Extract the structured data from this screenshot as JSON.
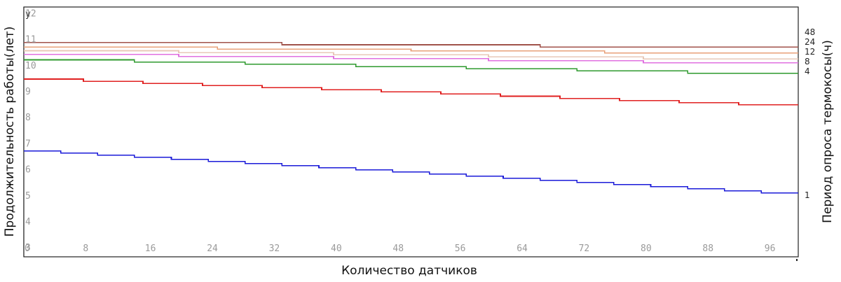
{
  "chart_data": {
    "type": "line",
    "y_axis_marker": "y",
    "xlabel": "Количество датчиков",
    "ylabel": "Продолжительность работы(лет)",
    "y2label": "Период опроса термокосы(ч)",
    "xlim": [
      0,
      100
    ],
    "ylim": [
      2.6,
      12.2
    ],
    "x_ticks": [
      "0",
      "8",
      "16",
      "24",
      "32",
      "40",
      "48",
      "56",
      "64",
      "72",
      "80",
      "88",
      "96"
    ],
    "y_ticks": [
      "3",
      "4",
      "5",
      "6",
      "7",
      "8",
      "9",
      "10",
      "11",
      "12"
    ],
    "grid": true,
    "x": [
      0,
      100
    ],
    "series": [
      {
        "name": "48",
        "color": "#a0524a",
        "values": [
          10.83,
          10.58
        ]
      },
      {
        "name": "24",
        "color": "#e8a078",
        "values": [
          10.66,
          10.36
        ]
      },
      {
        "name": "12",
        "color": "#e8c8b8",
        "values": [
          10.52,
          10.13
        ]
      },
      {
        "name": "8",
        "color": "#e070e0",
        "values": [
          10.38,
          9.97
        ]
      },
      {
        "name": "4",
        "color": "#2e9a2e",
        "values": [
          10.17,
          9.57
        ]
      },
      {
        "name": "",
        "color": "#e02020",
        "values": [
          9.43,
          8.36
        ]
      },
      {
        "name": "1",
        "color": "#1a1ad8",
        "values": [
          6.67,
          4.97
        ]
      }
    ]
  }
}
